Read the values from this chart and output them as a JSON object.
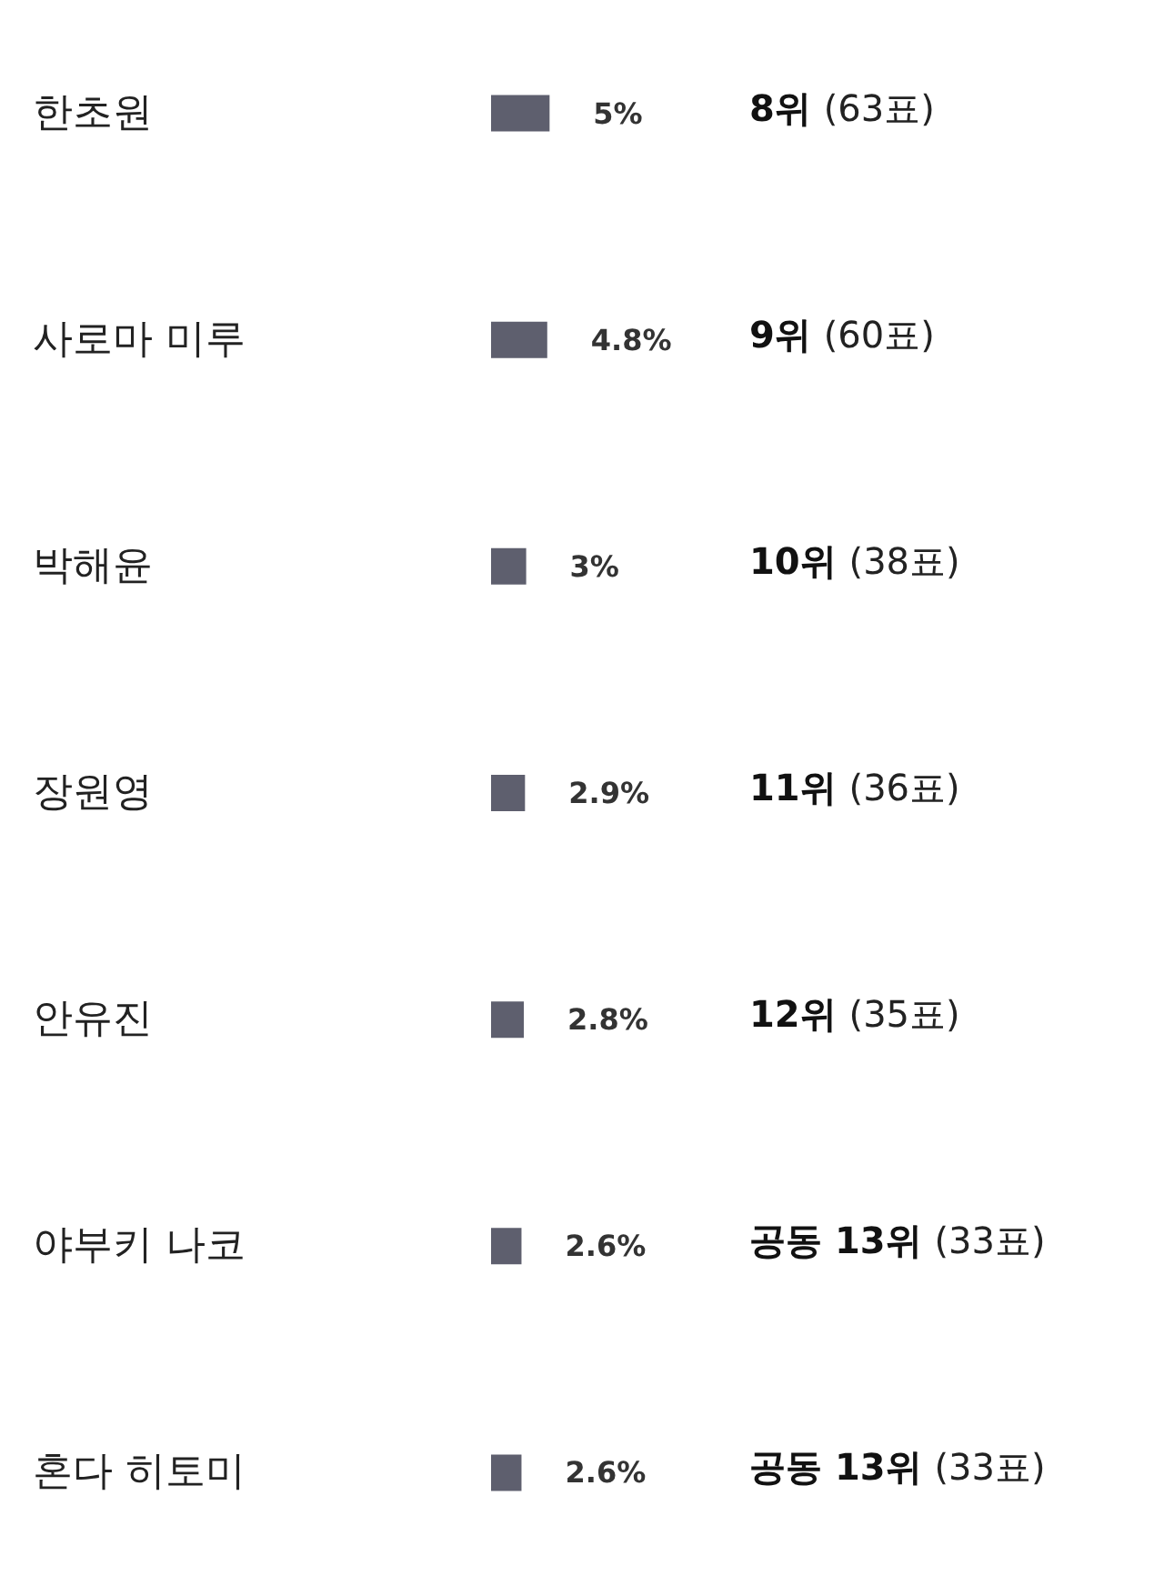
{
  "chart_data": {
    "type": "bar",
    "orientation": "horizontal",
    "tick_labels": "y",
    "categories": [
      "한초원",
      "사로마 미루",
      "박해윤",
      "장원영",
      "안유진",
      "야부키 나코",
      "혼다 히토미"
    ],
    "values": [
      5,
      4.8,
      3,
      2.9,
      2.8,
      2.6,
      2.6
    ],
    "color": "#5e5f6e",
    "value_labels": [
      "5%",
      "4.8%",
      "3%",
      "2.9%",
      "2.8%",
      "2.6%",
      "2.6%"
    ],
    "annotations": [
      "8위 (63표)",
      "9위 (60표)",
      "10위 (38표)",
      "11위 (36표)",
      "12위 (35표)",
      "공동 13위 (33표)",
      "공동 13위 (33표)"
    ]
  }
}
